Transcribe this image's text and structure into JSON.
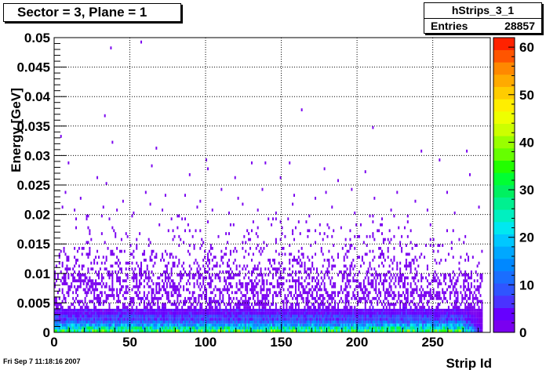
{
  "header": {
    "title": "Sector = 3, Plane = 1"
  },
  "stats": {
    "name": "hStrips_3_1",
    "entries_label": "Entries",
    "entries_value": "28857"
  },
  "footer": {
    "timestamp": "Fri Sep  7 11:18:16 2007"
  },
  "colors": {
    "palette": [
      "#7a00f0",
      "#6600ff",
      "#4a33ff",
      "#2f55ff",
      "#1a6eff",
      "#0088ff",
      "#00a8ff",
      "#00c8ff",
      "#00e8f0",
      "#00f0c0",
      "#00f090",
      "#00f060",
      "#00ff33",
      "#22ff00",
      "#66ff00",
      "#99ff00",
      "#ccff00",
      "#eeff00",
      "#ffee00",
      "#ffcc00",
      "#ffaa00",
      "#ff8800",
      "#ff5500",
      "#ff2200"
    ]
  },
  "chart_data": {
    "type": "heatmap",
    "xlabel": "Strip Id",
    "ylabel": "Energy [GeV]",
    "xlim": [
      0,
      288
    ],
    "ylim": [
      0,
      0.05
    ],
    "zlim": [
      0,
      62
    ],
    "x_ticks": [
      0,
      50,
      100,
      150,
      200,
      250
    ],
    "x_tick_labels": [
      "0",
      "50",
      "100",
      "150",
      "200",
      "250"
    ],
    "y_ticks": [
      0,
      0.005,
      0.01,
      0.015,
      0.02,
      0.025,
      0.03,
      0.035,
      0.04,
      0.045,
      0.05
    ],
    "y_tick_labels": [
      "0",
      "0.005",
      "0.01",
      "0.015",
      "0.02",
      "0.025",
      "0.03",
      "0.035",
      "0.04",
      "0.045",
      "0.05"
    ],
    "z_ticks": [
      0,
      10,
      20,
      30,
      40,
      50,
      60
    ],
    "z_tick_labels": [
      "0",
      "10",
      "20",
      "30",
      "40",
      "50",
      "60"
    ],
    "grid": true,
    "band_profile": [
      {
        "y_max": 0.0005,
        "mean": 30
      },
      {
        "y_max": 0.001,
        "mean": 24
      },
      {
        "y_max": 0.0015,
        "mean": 16
      },
      {
        "y_max": 0.002,
        "mean": 11
      },
      {
        "y_max": 0.003,
        "mean": 7
      },
      {
        "y_max": 0.004,
        "mean": 4
      },
      {
        "y_max": 0.006,
        "mean": 2
      },
      {
        "y_max": 0.01,
        "mean": 1
      }
    ],
    "sparse_points": [
      [
        37,
        0.048
      ],
      [
        57,
        0.049
      ],
      [
        163,
        0.0375
      ],
      [
        33,
        0.0365
      ],
      [
        210,
        0.0345
      ],
      [
        4,
        0.033
      ],
      [
        38,
        0.032
      ],
      [
        67,
        0.031
      ],
      [
        242,
        0.0305
      ],
      [
        272,
        0.0305
      ],
      [
        9,
        0.0285
      ],
      [
        64,
        0.028
      ],
      [
        100,
        0.029
      ],
      [
        130,
        0.0285
      ],
      [
        155,
        0.0285
      ],
      [
        254,
        0.029
      ],
      [
        139,
        0.0285
      ],
      [
        28,
        0.026
      ],
      [
        34,
        0.025
      ],
      [
        89,
        0.0265
      ],
      [
        101,
        0.0275
      ],
      [
        119,
        0.026
      ],
      [
        149,
        0.026
      ],
      [
        178,
        0.0275
      ],
      [
        187,
        0.0255
      ],
      [
        205,
        0.027
      ],
      [
        274,
        0.0265
      ],
      [
        7,
        0.0235
      ],
      [
        17,
        0.0225
      ],
      [
        45,
        0.022
      ],
      [
        60,
        0.0235
      ],
      [
        73,
        0.023
      ],
      [
        86,
        0.023
      ],
      [
        96,
        0.022
      ],
      [
        110,
        0.024
      ],
      [
        121,
        0.0225
      ],
      [
        137,
        0.024
      ],
      [
        158,
        0.023
      ],
      [
        172,
        0.0225
      ],
      [
        179,
        0.0235
      ],
      [
        196,
        0.024
      ],
      [
        211,
        0.0225
      ],
      [
        226,
        0.0235
      ],
      [
        238,
        0.022
      ],
      [
        259,
        0.0235
      ],
      [
        5,
        0.021
      ],
      [
        13,
        0.0205
      ],
      [
        21,
        0.0195
      ],
      [
        32,
        0.021
      ],
      [
        41,
        0.0205
      ],
      [
        52,
        0.02
      ],
      [
        63,
        0.0215
      ],
      [
        71,
        0.0205
      ],
      [
        81,
        0.0195
      ],
      [
        94,
        0.021
      ],
      [
        104,
        0.0205
      ],
      [
        115,
        0.02
      ],
      [
        124,
        0.0215
      ],
      [
        134,
        0.0205
      ],
      [
        146,
        0.02
      ],
      [
        157,
        0.0215
      ],
      [
        168,
        0.0195
      ],
      [
        183,
        0.021
      ],
      [
        198,
        0.02
      ],
      [
        208,
        0.0195
      ],
      [
        222,
        0.0205
      ],
      [
        233,
        0.0195
      ],
      [
        246,
        0.0205
      ],
      [
        264,
        0.02
      ],
      [
        280,
        0.021
      ]
    ]
  }
}
